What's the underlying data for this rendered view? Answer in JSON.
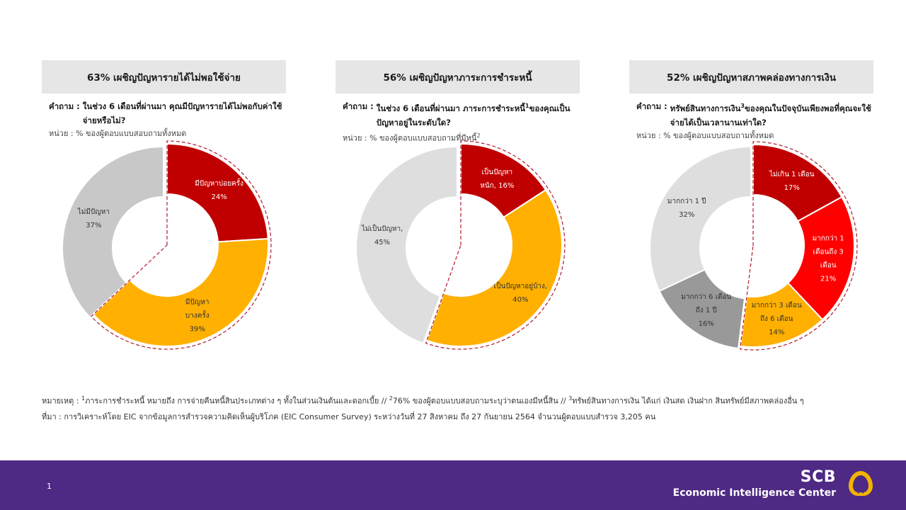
{
  "panels": [
    {
      "title": "63% เผชิญปัญหารายได้ไม่พอใช้จ่าย",
      "question_prefix": "คำถาม :",
      "question_text": "ในช่วง 6 เดือนที่ผ่านมา คุณมีปัญหารายได้ไม่พอกับค่าใช้จ่ายหรือไม่?",
      "unit": "หน่วย : % ของผู้ตอบแบบสอบถามทั้งหมด"
    },
    {
      "title": "56% เผชิญปัญหาภาระการชำระหนี้",
      "question_prefix": "คำถาม :",
      "question_text_a": "ในช่วง 6 เดือนที่ผ่านมา ภาระการชำระหนี้",
      "question_sup": "1",
      "question_text_b": "ของคุณเป็นปัญหาอยู่ในระดับใด?",
      "unit": "หน่วย : % ของผู้ตอบแบบสอบถามที่มีหนี้",
      "unit_sup": "2"
    },
    {
      "title": "52% เผชิญปัญหาสภาพคล่องทางการเงิน",
      "question_prefix": "คำถาม :",
      "question_text_a": "ทรัพย์สินทางการเงิน",
      "question_sup": "3",
      "question_text_b": "ของคุณในปัจจุบันเพียงพอที่คุณจะใช้จ่ายได้เป็นเวลานานเท่าใด?",
      "unit": "หน่วย : % ของผู้ตอบแบบสอบถามทั้งหมด"
    }
  ],
  "chart_data": [
    {
      "type": "pie",
      "donut": true,
      "categories": [
        "มีปัญหาบ่อยครั้ง",
        "มีปัญหาบางครั้ง",
        "ไม่มีปัญหา"
      ],
      "values": [
        24,
        39,
        37
      ],
      "labels": [
        [
          "มีปัญหาบ่อยครั้ง",
          "24%"
        ],
        [
          "มีปัญหา",
          "บางครั้ง",
          "39%"
        ],
        [
          "ไม่มีปัญหา",
          "37%"
        ]
      ],
      "colors": [
        "#c00000",
        "#ffb000",
        "#c8c8c8"
      ],
      "highlight": [
        true,
        true,
        false
      ]
    },
    {
      "type": "pie",
      "donut": true,
      "categories": [
        "เป็นปัญหาหนัก",
        "เป็นปัญหาอยู่บ้าง",
        "ไม่เป็นปัญหา"
      ],
      "values": [
        16,
        40,
        45
      ],
      "labels": [
        [
          "เป็นปัญหา",
          "หนัก, 16%"
        ],
        [
          "เป็นปัญหาอยู่บ้าง,",
          "40%"
        ],
        [
          "ไม่เป็นปัญหา,",
          "45%"
        ]
      ],
      "colors": [
        "#c00000",
        "#ffb000",
        "#dedede"
      ],
      "highlight": [
        true,
        true,
        false
      ]
    },
    {
      "type": "pie",
      "donut": true,
      "categories": [
        "ไม่เกิน 1 เดือน",
        "มากกว่า 1 เดือนถึง 3 เดือน",
        "มากกว่า 3 เดือน ถึง 6 เดือน",
        "มากกว่า 6 เดือน ถึง 1 ปี",
        "มากกว่า 1 ปี"
      ],
      "values": [
        17,
        21,
        14,
        16,
        32
      ],
      "labels": [
        [
          "ไม่เกิน 1 เดือน",
          "17%"
        ],
        [
          "มากกว่า 1",
          "เดือนถึง 3",
          "เดือน",
          "21%"
        ],
        [
          "มากกว่า 3 เดือน",
          "ถึง 6 เดือน",
          "14%"
        ],
        [
          "มากกว่า 6 เดือน",
          "ถึง 1 ปี",
          "16%"
        ],
        [
          "มากกว่า 1 ปี",
          "32%"
        ]
      ],
      "colors": [
        "#c00000",
        "#ff0000",
        "#ffb000",
        "#999999",
        "#dedede"
      ],
      "highlight": [
        true,
        true,
        true,
        false,
        false
      ]
    }
  ],
  "footnote": {
    "line1_prefix": "หมายเหตุ : ",
    "sup1": "1",
    "text1": "ภาระการชำระหนี้ หมายถึง การจ่ายคืนหนี้สินประเภทต่าง ๆ ทั้งในส่วนเงินต้นและดอกเบี้ย // ",
    "sup2": "2",
    "text2": "76% ของผู้ตอบแบบสอบถามระบุว่าตนเองมีหนี้สิน // ",
    "sup3": "3",
    "text3": "ทรัพย์สินทางการเงิน ได้แก่ เงินสด เงินฝาก สินทรัพย์มีสภาพคล่องอื่น ๆ",
    "line2": "ที่มา : การวิเคราะห์โดย EIC จากข้อมูลการสำรวจความคิดเห็นผู้บริโภค (EIC Consumer Survey) ระหว่างวันที่ 27 สิงหาคม ถึง 27 กันยายน 2564 จำนวนผู้ตอบแบบสำรวจ 3,205 คน"
  },
  "footer": {
    "page_number": "1",
    "brand_name": "SCB",
    "brand_subtitle": "Economic Intelligence Center"
  }
}
